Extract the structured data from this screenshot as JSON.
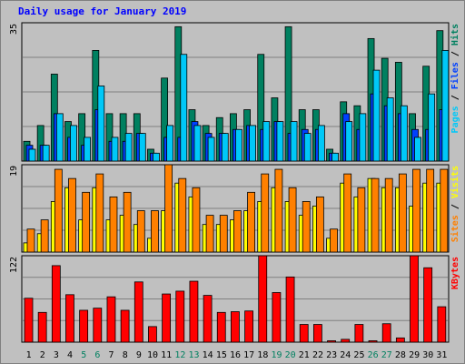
{
  "title": "Daily usage for January 2019",
  "colors": {
    "background": "#c0c0c0",
    "plot_bg": "#c0c0c0",
    "grid": "#808080",
    "hits": "#008060",
    "files": "#00c8f8",
    "pages": "#0040ff",
    "visits": "#ff8000",
    "sites": "#ffff00",
    "kbytes": "#ff0000",
    "weekend_label": "#008060",
    "weekday_label": "#000000",
    "title": "#0000ff"
  },
  "chart_data": [
    {
      "type": "bar",
      "name": "hits-files-pages",
      "categories": [
        "1",
        "2",
        "3",
        "4",
        "5",
        "6",
        "7",
        "8",
        "9",
        "10",
        "11",
        "12",
        "13",
        "14",
        "15",
        "16",
        "17",
        "18",
        "19",
        "20",
        "21",
        "22",
        "23",
        "24",
        "25",
        "26",
        "27",
        "28",
        "29",
        "30",
        "31"
      ],
      "weekend_days": [
        "5",
        "6",
        "12",
        "13",
        "19",
        "20",
        "26",
        "27"
      ],
      "max_label": "35",
      "ymax": 35,
      "series": [
        {
          "name": "Hits",
          "values": [
            5,
            9,
            22,
            10,
            12,
            28,
            12,
            12,
            12,
            3,
            21,
            34,
            13,
            9,
            11,
            12,
            13,
            27,
            16,
            34,
            13,
            13,
            3,
            15,
            14,
            31,
            26,
            25,
            12,
            24,
            33
          ]
        },
        {
          "name": "Files",
          "values": [
            3,
            4,
            12,
            9,
            6,
            19,
            6,
            7,
            7,
            2,
            9,
            27,
            9,
            6,
            7,
            8,
            9,
            10,
            10,
            10,
            7,
            9,
            2,
            10,
            12,
            23,
            16,
            14,
            6,
            17,
            28
          ]
        },
        {
          "name": "Pages",
          "values": [
            4,
            4,
            12,
            6,
            4,
            13,
            5,
            5,
            7,
            2,
            6,
            6,
            10,
            7,
            7,
            8,
            9,
            8,
            10,
            7,
            8,
            8,
            2,
            12,
            8,
            17,
            14,
            12,
            8,
            8,
            13
          ]
        }
      ],
      "right_legend": [
        {
          "text": "Pages",
          "color": "#00c8f8"
        },
        {
          "text": " / ",
          "color": "#000000"
        },
        {
          "text": "Files",
          "color": "#0040ff"
        },
        {
          "text": " / ",
          "color": "#000000"
        },
        {
          "text": "Hits",
          "color": "#008060"
        }
      ]
    },
    {
      "type": "bar",
      "name": "visits-sites",
      "categories": [
        "1",
        "2",
        "3",
        "4",
        "5",
        "6",
        "7",
        "8",
        "9",
        "10",
        "11",
        "12",
        "13",
        "14",
        "15",
        "16",
        "17",
        "18",
        "19",
        "20",
        "21",
        "22",
        "23",
        "24",
        "25",
        "26",
        "27",
        "28",
        "29",
        "30",
        "31"
      ],
      "max_label": "19",
      "ymax": 19,
      "series": [
        {
          "name": "Visits",
          "values": [
            5,
            7,
            18,
            16,
            13,
            17,
            12,
            13,
            9,
            9,
            19,
            16,
            14,
            8,
            8,
            9,
            13,
            17,
            18,
            14,
            11,
            12,
            5,
            17,
            14,
            16,
            16,
            17,
            18,
            18,
            18
          ]
        },
        {
          "name": "Sites",
          "values": [
            2,
            4,
            11,
            14,
            7,
            14,
            7,
            8,
            6,
            3,
            9,
            15,
            12,
            6,
            6,
            7,
            9,
            11,
            14,
            11,
            8,
            10,
            3,
            15,
            12,
            16,
            14,
            14,
            10,
            15,
            15
          ]
        }
      ],
      "right_legend": [
        {
          "text": "Sites",
          "color": "#ff8000"
        },
        {
          "text": " / ",
          "color": "#000000"
        },
        {
          "text": "Visits",
          "color": "#ffff00"
        }
      ]
    },
    {
      "type": "bar",
      "name": "kbytes",
      "categories": [
        "1",
        "2",
        "3",
        "4",
        "5",
        "6",
        "7",
        "8",
        "9",
        "10",
        "11",
        "12",
        "13",
        "14",
        "15",
        "16",
        "17",
        "18",
        "19",
        "20",
        "21",
        "22",
        "23",
        "24",
        "25",
        "26",
        "27",
        "28",
        "29",
        "30",
        "31"
      ],
      "max_label": "122",
      "ymax": 122,
      "series": [
        {
          "name": "KBytes",
          "values": [
            62,
            42,
            108,
            67,
            45,
            48,
            64,
            45,
            85,
            22,
            68,
            72,
            86,
            66,
            42,
            43,
            44,
            122,
            70,
            92,
            25,
            25,
            2,
            4,
            25,
            2,
            26,
            6,
            122,
            105,
            50
          ]
        }
      ],
      "right_legend": [
        {
          "text": "KBytes",
          "color": "#ff0000"
        }
      ]
    }
  ]
}
